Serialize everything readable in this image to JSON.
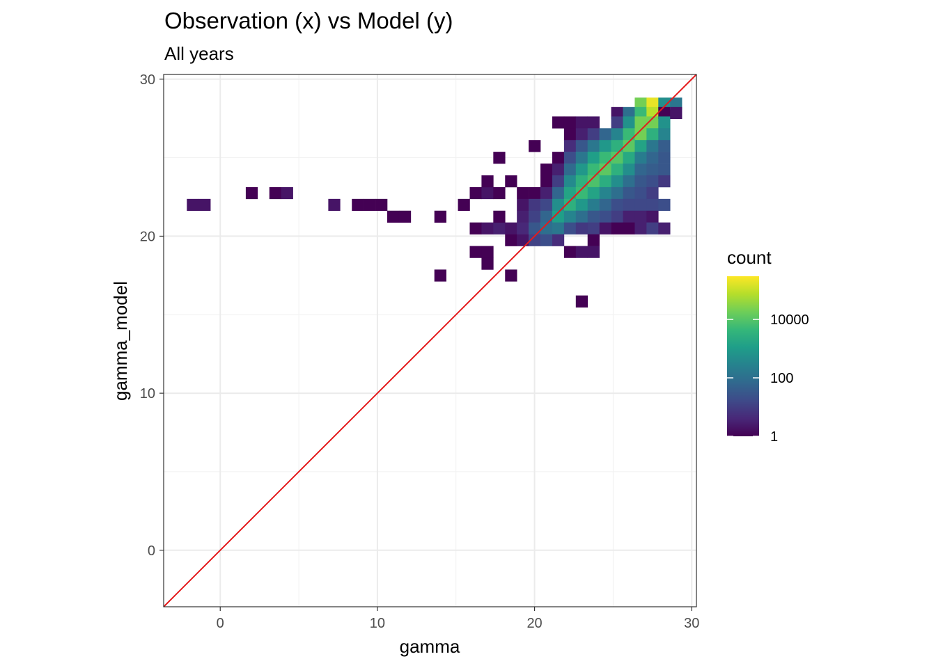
{
  "chart_data": {
    "type": "heatmap",
    "title": "Observation (x) vs Model (y)",
    "subtitle": "All years",
    "xlabel": "gamma",
    "ylabel": "gamma_model",
    "xlim": [
      -3.6,
      30.3
    ],
    "ylim": [
      -3.6,
      30.3
    ],
    "x_ticks": [
      0,
      10,
      20,
      30
    ],
    "y_ticks": [
      0,
      10,
      20,
      30
    ],
    "grid": true,
    "bin_width": 0.75,
    "identity_line": {
      "slope": 1,
      "intercept": 0,
      "color": "#e41a1c"
    },
    "legend": {
      "title": "count",
      "scale": "log10",
      "breaks": [
        1,
        100,
        10000
      ],
      "break_labels": [
        "1",
        "100",
        "10000"
      ],
      "max": 300000,
      "colors": [
        "#440154",
        "#482878",
        "#3e4a89",
        "#31688e",
        "#26828e",
        "#1f9e89",
        "#35b779",
        "#6ece58",
        "#b5de2b",
        "#fde725"
      ]
    },
    "bins": [
      {
        "x": -1.75,
        "y": 22.0,
        "count": 2
      },
      {
        "x": -1.0,
        "y": 22.0,
        "count": 2
      },
      {
        "x": 2.0,
        "y": 22.75,
        "count": 1
      },
      {
        "x": 3.5,
        "y": 22.75,
        "count": 1
      },
      {
        "x": 4.25,
        "y": 22.75,
        "count": 2
      },
      {
        "x": 7.25,
        "y": 22.0,
        "count": 2
      },
      {
        "x": 8.75,
        "y": 22.0,
        "count": 1
      },
      {
        "x": 9.5,
        "y": 22.0,
        "count": 1
      },
      {
        "x": 10.25,
        "y": 22.0,
        "count": 1
      },
      {
        "x": 11.0,
        "y": 21.25,
        "count": 1
      },
      {
        "x": 11.75,
        "y": 21.25,
        "count": 1
      },
      {
        "x": 14.0,
        "y": 21.25,
        "count": 1
      },
      {
        "x": 14.0,
        "y": 17.5,
        "count": 1
      },
      {
        "x": 15.5,
        "y": 22.0,
        "count": 1
      },
      {
        "x": 16.25,
        "y": 22.75,
        "count": 1
      },
      {
        "x": 16.25,
        "y": 20.5,
        "count": 1
      },
      {
        "x": 16.25,
        "y": 19.0,
        "count": 1
      },
      {
        "x": 17.0,
        "y": 22.75,
        "count": 2
      },
      {
        "x": 17.0,
        "y": 20.5,
        "count": 2
      },
      {
        "x": 17.0,
        "y": 19.0,
        "count": 1
      },
      {
        "x": 17.0,
        "y": 18.25,
        "count": 1
      },
      {
        "x": 17.0,
        "y": 23.5,
        "count": 1
      },
      {
        "x": 17.75,
        "y": 22.75,
        "count": 1
      },
      {
        "x": 17.75,
        "y": 25.0,
        "count": 1
      },
      {
        "x": 17.75,
        "y": 20.5,
        "count": 3
      },
      {
        "x": 17.75,
        "y": 21.25,
        "count": 1
      },
      {
        "x": 18.5,
        "y": 23.5,
        "count": 1
      },
      {
        "x": 18.5,
        "y": 20.5,
        "count": 2
      },
      {
        "x": 18.5,
        "y": 19.75,
        "count": 1
      },
      {
        "x": 18.5,
        "y": 17.5,
        "count": 1
      },
      {
        "x": 19.25,
        "y": 22.75,
        "count": 1
      },
      {
        "x": 19.25,
        "y": 22.0,
        "count": 2
      },
      {
        "x": 19.25,
        "y": 21.25,
        "count": 3
      },
      {
        "x": 19.25,
        "y": 20.5,
        "count": 4
      },
      {
        "x": 19.25,
        "y": 19.75,
        "count": 2
      },
      {
        "x": 20.0,
        "y": 25.75,
        "count": 1
      },
      {
        "x": 20.0,
        "y": 22.75,
        "count": 1
      },
      {
        "x": 20.0,
        "y": 22.0,
        "count": 8
      },
      {
        "x": 20.0,
        "y": 21.25,
        "count": 12
      },
      {
        "x": 20.0,
        "y": 20.5,
        "count": 30
      },
      {
        "x": 20.0,
        "y": 19.75,
        "count": 12
      },
      {
        "x": 20.75,
        "y": 24.25,
        "count": 1
      },
      {
        "x": 20.75,
        "y": 23.5,
        "count": 1
      },
      {
        "x": 20.75,
        "y": 22.75,
        "count": 3
      },
      {
        "x": 20.75,
        "y": 22.0,
        "count": 15
      },
      {
        "x": 20.75,
        "y": 21.25,
        "count": 60
      },
      {
        "x": 20.75,
        "y": 20.5,
        "count": 100
      },
      {
        "x": 20.75,
        "y": 19.75,
        "count": 20
      },
      {
        "x": 21.5,
        "y": 27.25,
        "count": 1
      },
      {
        "x": 21.5,
        "y": 25.0,
        "count": 1
      },
      {
        "x": 21.5,
        "y": 24.25,
        "count": 3
      },
      {
        "x": 21.5,
        "y": 23.5,
        "count": 10
      },
      {
        "x": 21.5,
        "y": 22.75,
        "count": 60
      },
      {
        "x": 21.5,
        "y": 22.0,
        "count": 500
      },
      {
        "x": 21.5,
        "y": 21.25,
        "count": 1200
      },
      {
        "x": 21.5,
        "y": 20.5,
        "count": 150
      },
      {
        "x": 21.5,
        "y": 19.75,
        "count": 5
      },
      {
        "x": 22.25,
        "y": 27.25,
        "count": 1
      },
      {
        "x": 22.25,
        "y": 26.5,
        "count": 1
      },
      {
        "x": 22.25,
        "y": 25.75,
        "count": 5
      },
      {
        "x": 22.25,
        "y": 25.0,
        "count": 20
      },
      {
        "x": 22.25,
        "y": 24.25,
        "count": 80
      },
      {
        "x": 22.25,
        "y": 23.5,
        "count": 400
      },
      {
        "x": 22.25,
        "y": 22.75,
        "count": 1500
      },
      {
        "x": 22.25,
        "y": 22.0,
        "count": 3000
      },
      {
        "x": 22.25,
        "y": 21.25,
        "count": 300
      },
      {
        "x": 22.25,
        "y": 20.5,
        "count": 20
      },
      {
        "x": 22.25,
        "y": 19.0,
        "count": 1
      },
      {
        "x": 23.0,
        "y": 27.25,
        "count": 2
      },
      {
        "x": 23.0,
        "y": 26.5,
        "count": 3
      },
      {
        "x": 23.0,
        "y": 25.75,
        "count": 30
      },
      {
        "x": 23.0,
        "y": 25.0,
        "count": 150
      },
      {
        "x": 23.0,
        "y": 24.25,
        "count": 800
      },
      {
        "x": 23.0,
        "y": 23.5,
        "count": 3000
      },
      {
        "x": 23.0,
        "y": 22.75,
        "count": 5000
      },
      {
        "x": 23.0,
        "y": 22.0,
        "count": 800
      },
      {
        "x": 23.0,
        "y": 21.25,
        "count": 100
      },
      {
        "x": 23.0,
        "y": 20.5,
        "count": 8
      },
      {
        "x": 23.0,
        "y": 19.0,
        "count": 2
      },
      {
        "x": 23.0,
        "y": 15.85,
        "count": 1
      },
      {
        "x": 23.75,
        "y": 27.25,
        "count": 2
      },
      {
        "x": 23.75,
        "y": 26.5,
        "count": 10
      },
      {
        "x": 23.75,
        "y": 25.75,
        "count": 150
      },
      {
        "x": 23.75,
        "y": 25.0,
        "count": 1200
      },
      {
        "x": 23.75,
        "y": 24.25,
        "count": 5000
      },
      {
        "x": 23.75,
        "y": 23.5,
        "count": 8000
      },
      {
        "x": 23.75,
        "y": 22.75,
        "count": 1500
      },
      {
        "x": 23.75,
        "y": 22.0,
        "count": 200
      },
      {
        "x": 23.75,
        "y": 21.25,
        "count": 30
      },
      {
        "x": 23.75,
        "y": 20.5,
        "count": 10
      },
      {
        "x": 23.75,
        "y": 19.75,
        "count": 1
      },
      {
        "x": 23.75,
        "y": 19.0,
        "count": 2
      },
      {
        "x": 24.5,
        "y": 26.5,
        "count": 60
      },
      {
        "x": 24.5,
        "y": 25.75,
        "count": 800
      },
      {
        "x": 24.5,
        "y": 25.0,
        "count": 5000
      },
      {
        "x": 24.5,
        "y": 24.25,
        "count": 12000
      },
      {
        "x": 24.5,
        "y": 23.5,
        "count": 2500
      },
      {
        "x": 24.5,
        "y": 22.75,
        "count": 300
      },
      {
        "x": 24.5,
        "y": 22.0,
        "count": 60
      },
      {
        "x": 24.5,
        "y": 21.25,
        "count": 20
      },
      {
        "x": 24.5,
        "y": 20.5,
        "count": 2
      },
      {
        "x": 25.25,
        "y": 27.85,
        "count": 2
      },
      {
        "x": 25.25,
        "y": 27.25,
        "count": 10
      },
      {
        "x": 25.25,
        "y": 26.5,
        "count": 300
      },
      {
        "x": 25.25,
        "y": 25.75,
        "count": 3000
      },
      {
        "x": 25.25,
        "y": 25.0,
        "count": 10000
      },
      {
        "x": 25.25,
        "y": 24.25,
        "count": 3000
      },
      {
        "x": 25.25,
        "y": 23.5,
        "count": 500
      },
      {
        "x": 25.25,
        "y": 22.75,
        "count": 100
      },
      {
        "x": 25.25,
        "y": 22.0,
        "count": 20
      },
      {
        "x": 25.25,
        "y": 21.25,
        "count": 10
      },
      {
        "x": 25.25,
        "y": 20.5,
        "count": 1
      },
      {
        "x": 26.0,
        "y": 27.85,
        "count": 100
      },
      {
        "x": 26.0,
        "y": 27.25,
        "count": 600
      },
      {
        "x": 26.0,
        "y": 26.5,
        "count": 5000
      },
      {
        "x": 26.0,
        "y": 25.75,
        "count": 12000
      },
      {
        "x": 26.0,
        "y": 25.0,
        "count": 2000
      },
      {
        "x": 26.0,
        "y": 24.25,
        "count": 500
      },
      {
        "x": 26.0,
        "y": 23.5,
        "count": 100
      },
      {
        "x": 26.0,
        "y": 22.75,
        "count": 30
      },
      {
        "x": 26.0,
        "y": 22.0,
        "count": 15
      },
      {
        "x": 26.0,
        "y": 21.25,
        "count": 3
      },
      {
        "x": 26.0,
        "y": 20.5,
        "count": 1
      },
      {
        "x": 26.75,
        "y": 28.45,
        "count": 20000
      },
      {
        "x": 26.75,
        "y": 27.85,
        "count": 5000
      },
      {
        "x": 26.75,
        "y": 27.25,
        "count": 20000
      },
      {
        "x": 26.75,
        "y": 26.5,
        "count": 20000
      },
      {
        "x": 26.75,
        "y": 25.75,
        "count": 1500
      },
      {
        "x": 26.75,
        "y": 25.0,
        "count": 200
      },
      {
        "x": 26.75,
        "y": 24.25,
        "count": 60
      },
      {
        "x": 26.75,
        "y": 23.5,
        "count": 30
      },
      {
        "x": 26.75,
        "y": 22.75,
        "count": 20
      },
      {
        "x": 26.75,
        "y": 22.0,
        "count": 15
      },
      {
        "x": 26.75,
        "y": 21.25,
        "count": 3
      },
      {
        "x": 26.75,
        "y": 20.5,
        "count": 3
      },
      {
        "x": 27.5,
        "y": 28.45,
        "count": 200000
      },
      {
        "x": 27.5,
        "y": 27.85,
        "count": 80000
      },
      {
        "x": 27.5,
        "y": 27.25,
        "count": 20000
      },
      {
        "x": 27.5,
        "y": 26.5,
        "count": 3000
      },
      {
        "x": 27.5,
        "y": 25.75,
        "count": 150
      },
      {
        "x": 27.5,
        "y": 25.0,
        "count": 60
      },
      {
        "x": 27.5,
        "y": 24.25,
        "count": 40
      },
      {
        "x": 27.5,
        "y": 23.5,
        "count": 20
      },
      {
        "x": 27.5,
        "y": 22.75,
        "count": 10
      },
      {
        "x": 27.5,
        "y": 22.0,
        "count": 15
      },
      {
        "x": 27.5,
        "y": 21.25,
        "count": 2
      },
      {
        "x": 27.5,
        "y": 20.5,
        "count": 10
      },
      {
        "x": 28.25,
        "y": 28.45,
        "count": 500
      },
      {
        "x": 28.25,
        "y": 27.85,
        "count": 1
      },
      {
        "x": 28.25,
        "y": 27.25,
        "count": 600
      },
      {
        "x": 28.25,
        "y": 26.5,
        "count": 300
      },
      {
        "x": 28.25,
        "y": 25.75,
        "count": 40
      },
      {
        "x": 28.25,
        "y": 25.0,
        "count": 30
      },
      {
        "x": 28.25,
        "y": 24.25,
        "count": 30
      },
      {
        "x": 28.25,
        "y": 23.5,
        "count": 8
      },
      {
        "x": 28.25,
        "y": 22.0,
        "count": 20
      },
      {
        "x": 28.25,
        "y": 20.5,
        "count": 3
      },
      {
        "x": 29.0,
        "y": 28.45,
        "count": 150
      },
      {
        "x": 29.0,
        "y": 27.85,
        "count": 2
      }
    ]
  }
}
